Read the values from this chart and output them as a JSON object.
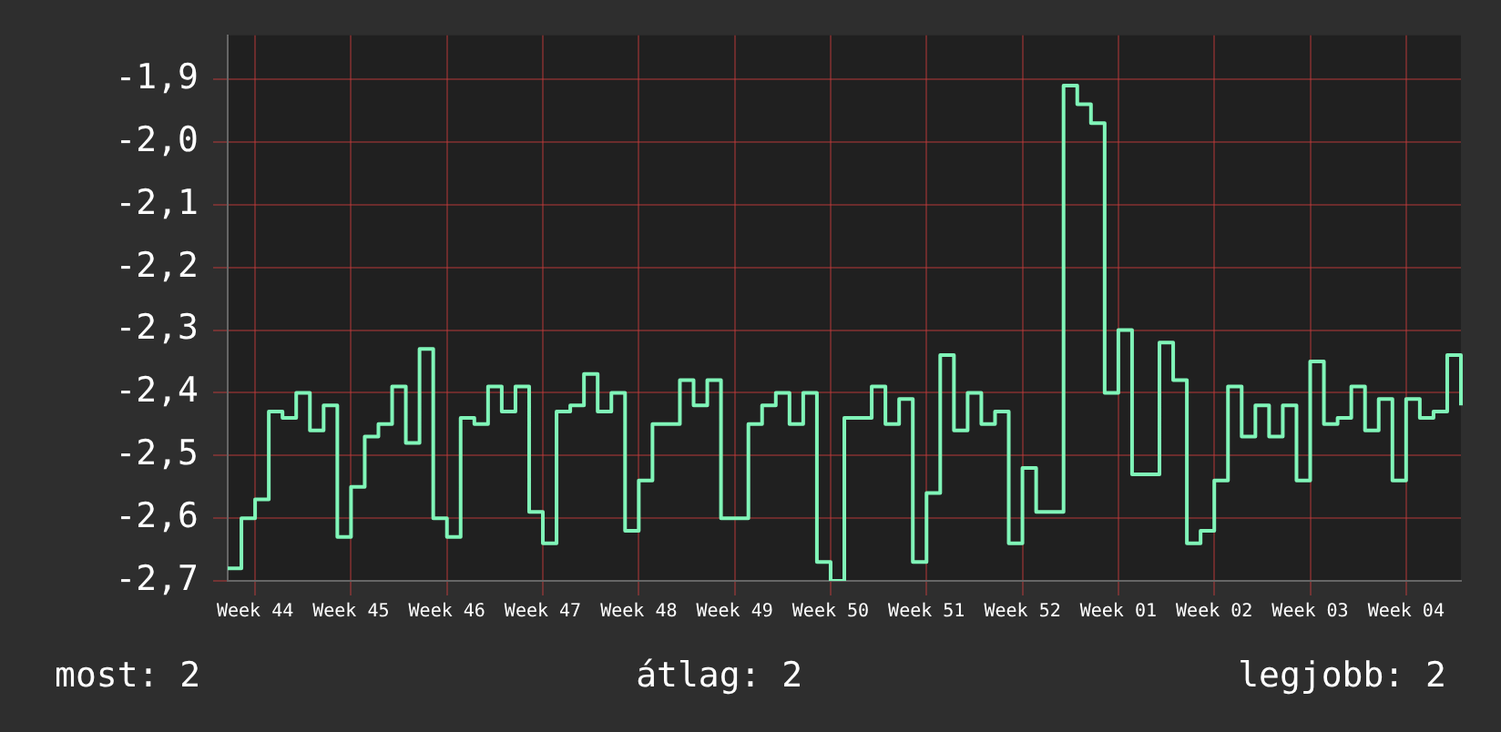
{
  "chart_data": {
    "type": "step",
    "categories": [
      null,
      null,
      "Week 44",
      null,
      null,
      null,
      null,
      null,
      null,
      "Week 45",
      null,
      null,
      null,
      null,
      null,
      null,
      "Week 46",
      null,
      null,
      null,
      null,
      null,
      null,
      "Week 47",
      null,
      null,
      null,
      null,
      null,
      null,
      "Week 48",
      null,
      null,
      null,
      null,
      null,
      null,
      "Week 49",
      null,
      null,
      null,
      null,
      null,
      null,
      "Week 50",
      null,
      null,
      null,
      null,
      null,
      null,
      "Week 51",
      null,
      null,
      null,
      null,
      null,
      null,
      "Week 52",
      null,
      null,
      null,
      null,
      null,
      null,
      "Week 01",
      null,
      null,
      null,
      null,
      null,
      null,
      "Week 02",
      null,
      null,
      null,
      null,
      null,
      null,
      "Week 03",
      null,
      null,
      null,
      null,
      null,
      null,
      "Week 04",
      null,
      null,
      null,
      null
    ],
    "series": [
      {
        "color": "#80f5b8",
        "values": [
          -2.68,
          -2.6,
          -2.57,
          -2.43,
          -2.44,
          -2.4,
          -2.46,
          -2.42,
          -2.63,
          -2.55,
          -2.47,
          -2.45,
          -2.39,
          -2.48,
          -2.33,
          -2.6,
          -2.63,
          -2.44,
          -2.45,
          -2.39,
          -2.43,
          -2.39,
          -2.59,
          -2.64,
          -2.43,
          -2.42,
          -2.37,
          -2.43,
          -2.4,
          -2.62,
          -2.54,
          -2.45,
          -2.45,
          -2.38,
          -2.42,
          -2.38,
          -2.6,
          -2.6,
          -2.45,
          -2.42,
          -2.4,
          -2.45,
          -2.4,
          -2.67,
          -2.7,
          -2.44,
          -2.44,
          -2.39,
          -2.45,
          -2.41,
          -2.67,
          -2.56,
          -2.34,
          -2.46,
          -2.4,
          -2.45,
          -2.43,
          -2.64,
          -2.52,
          -2.59,
          -2.59,
          -1.91,
          -1.94,
          -1.97,
          -2.4,
          -2.3,
          -2.53,
          -2.53,
          -2.32,
          -2.38,
          -2.64,
          -2.62,
          -2.54,
          -2.39,
          -2.47,
          -2.42,
          -2.47,
          -2.42,
          -2.54,
          -2.35,
          -2.45,
          -2.44,
          -2.39,
          -2.46,
          -2.41,
          -2.54,
          -2.41,
          -2.44,
          -2.43,
          -2.34,
          -2.42
        ]
      }
    ],
    "ylim": [
      -2.7,
      -1.83
    ],
    "yticks": [
      {
        "value": -2.7,
        "label": "-2,7"
      },
      {
        "value": -2.6,
        "label": "-2,6"
      },
      {
        "value": -2.5,
        "label": "-2,5"
      },
      {
        "value": -2.4,
        "label": "-2,4"
      },
      {
        "value": -2.3,
        "label": "-2,3"
      },
      {
        "value": -2.2,
        "label": "-2,2"
      },
      {
        "value": -2.1,
        "label": "-2,1"
      },
      {
        "value": -2.0,
        "label": "-2,0"
      },
      {
        "value": -1.9,
        "label": "-1,9"
      }
    ],
    "grid": true,
    "annotations": [
      "most: 2",
      "átlag: 2",
      "legjobb: 2"
    ]
  }
}
